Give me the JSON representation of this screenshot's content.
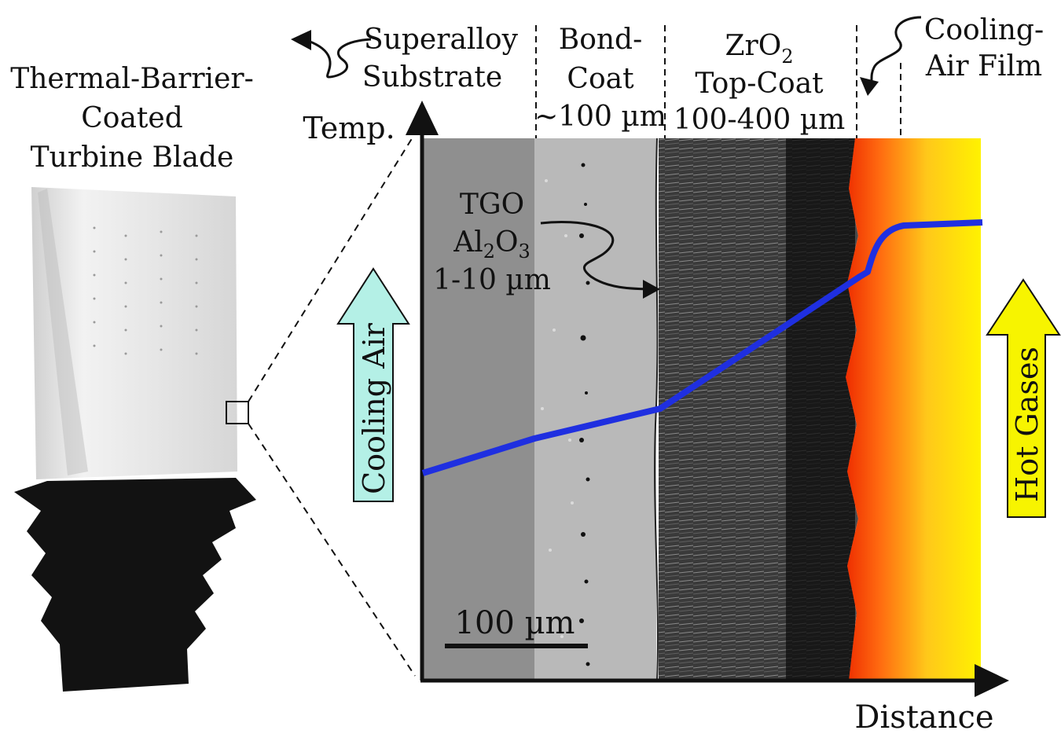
{
  "blade_label": {
    "line1": "Thermal-Barrier-",
    "line2": "Coated",
    "line3": "Turbine Blade"
  },
  "layers": {
    "substrate": {
      "line1": "Superalloy",
      "line2": "Substrate"
    },
    "bondcoat": {
      "line1": "Bond-",
      "line2": "Coat",
      "thickness": "~100 µm"
    },
    "topcoat": {
      "formula_base": "ZrO",
      "formula_sub": "2",
      "line2": "Top-Coat",
      "thickness": "100-400 µm"
    },
    "cooling_film": {
      "line1": "Cooling-",
      "line2": "Air Film"
    }
  },
  "tgo": {
    "line1": "TGO",
    "al": "Al",
    "al_sub": "2",
    "o": "O",
    "o_sub": "3",
    "thickness": "1-10 µm"
  },
  "axes": {
    "y_label": "Temp.",
    "x_label": "Distance"
  },
  "scale_bar": "100 µm",
  "arrows": {
    "left": "Cooling Air",
    "right": "Hot Gases"
  },
  "colors": {
    "temperature_curve": "#1f2fe0",
    "cooling_air_arrow": "#b4f0e6",
    "hot_gases_arrow": "#f7f400",
    "hot_gas_gradient_start": "#ee2d00",
    "hot_gas_gradient_end": "#fff200"
  }
}
